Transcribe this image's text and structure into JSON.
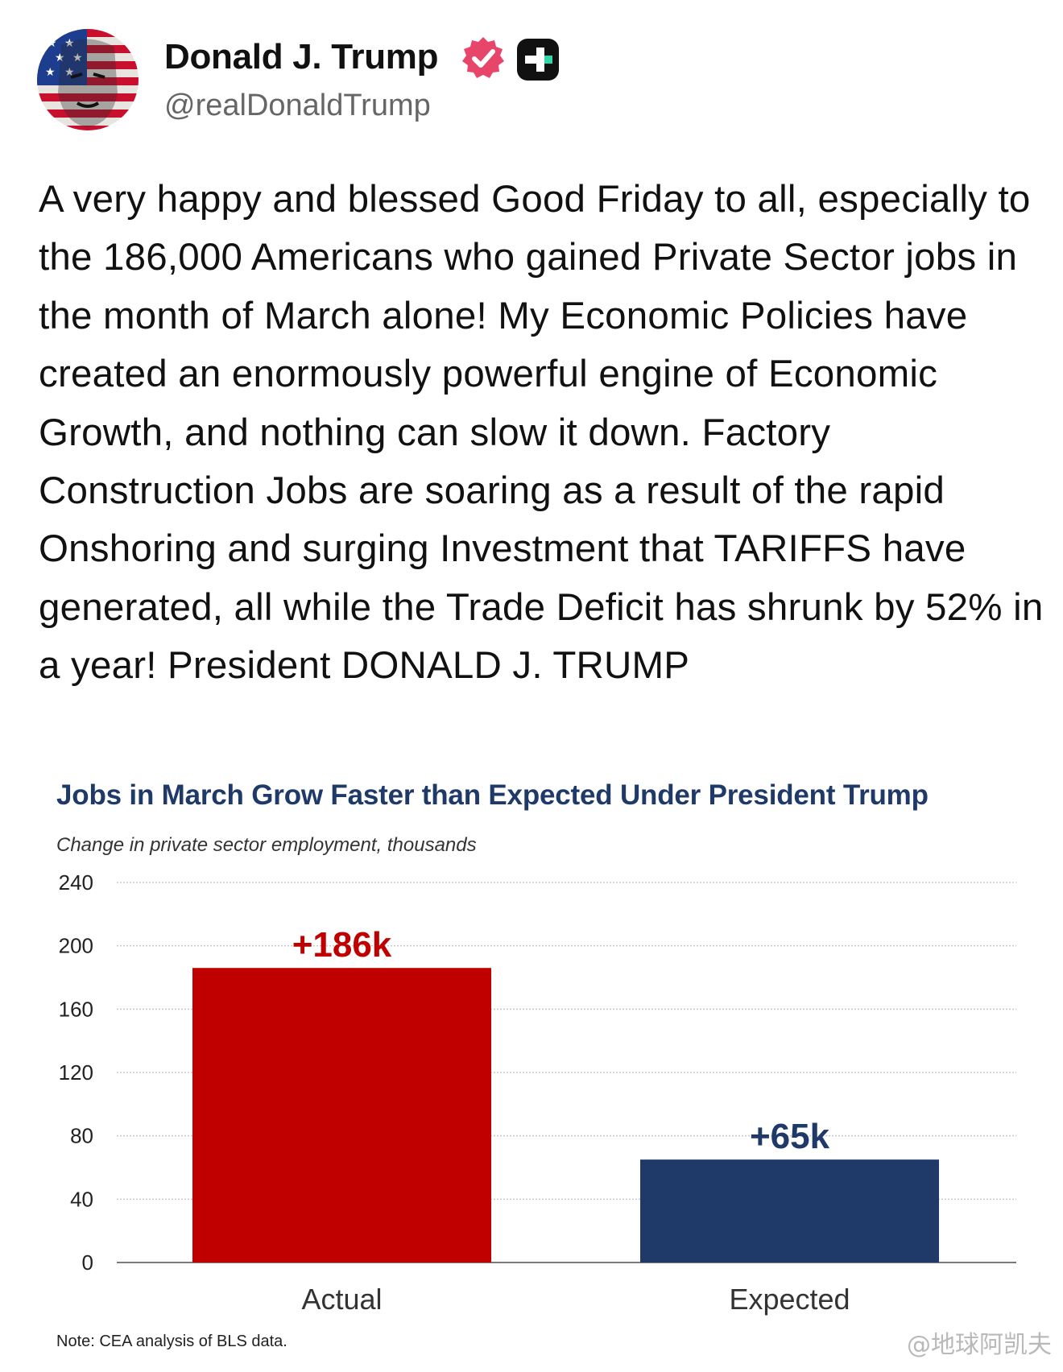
{
  "author": {
    "name": "Donald J. Trump",
    "handle": "@realDonaldTrump"
  },
  "post": {
    "text": "A very happy and blessed Good Friday to all, especially to the 186,000 Americans who gained Private Sector jobs in the month of March alone! My Economic Policies have created an enormously powerful engine of Economic Growth, and nothing can slow it down. Factory Construction Jobs are soaring as a result of the rapid Onshoring and surging Investment that TARIFFS have generated, all while the Trade Deficit has shrunk by 52% in a year! President DONALD J. TRUMP"
  },
  "icons": {
    "avatar": "profile-portrait-icon",
    "verified": "verified-badge-icon",
    "plus": "plus-badge-icon"
  },
  "colors": {
    "verified": "#e8456b",
    "actual": "#c00000",
    "expected": "#1f3a68",
    "title": "#1f3a68"
  },
  "chart_data": {
    "type": "bar",
    "title": "Jobs in March Grow Faster than Expected Under President Trump",
    "subtitle": "Change in private sector employment,  thousands",
    "categories": [
      "Actual",
      "Expected"
    ],
    "values": [
      186,
      65
    ],
    "data_labels": [
      "+186k",
      "+65k"
    ],
    "bar_colors": [
      "#c00000",
      "#1f3a68"
    ],
    "ylim": [
      0,
      240
    ],
    "yticks": [
      0,
      40,
      80,
      120,
      160,
      200,
      240
    ],
    "grid": true,
    "xlabel": "",
    "ylabel": "",
    "note": "Note: CEA analysis of BLS data."
  },
  "watermark": "@地球阿凯夫"
}
